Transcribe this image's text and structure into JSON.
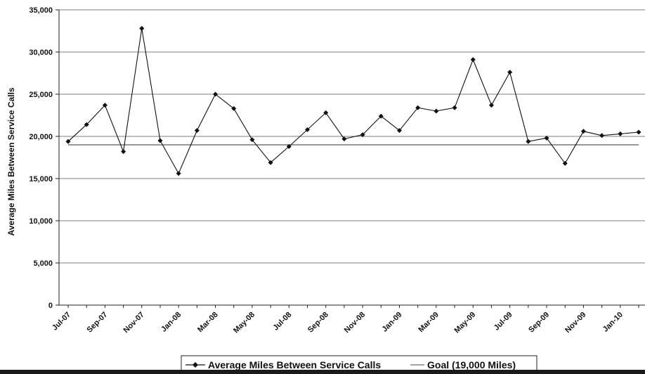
{
  "chart_data": {
    "type": "line",
    "title": "",
    "xlabel": "",
    "ylabel": "Average Miles Between Service Calls",
    "ylim": [
      0,
      35000
    ],
    "yticks": [
      "0",
      "5,000",
      "10,000",
      "15,000",
      "20,000",
      "25,000",
      "30,000",
      "35,000"
    ],
    "ytick_values": [
      0,
      5000,
      10000,
      15000,
      20000,
      25000,
      30000,
      35000
    ],
    "grid": true,
    "legend_position": "bottom",
    "x": [
      "Jul-07",
      "Aug-07",
      "Sep-07",
      "Oct-07",
      "Nov-07",
      "Dec-07",
      "Jan-08",
      "Feb-08",
      "Mar-08",
      "Apr-08",
      "May-08",
      "Jun-08",
      "Jul-08",
      "Aug-08",
      "Sep-08",
      "Oct-08",
      "Nov-08",
      "Dec-08",
      "Jan-09",
      "Feb-09",
      "Mar-09",
      "Apr-09",
      "May-09",
      "Jun-09",
      "Jul-09",
      "Aug-09",
      "Sep-09",
      "Oct-09",
      "Nov-09",
      "Dec-09",
      "Jan-10",
      "Feb-10"
    ],
    "xtick_labels": [
      "Jul-07",
      "Sep-07",
      "Nov-07",
      "Jan-08",
      "Mar-08",
      "May-08",
      "Jul-08",
      "Sep-08",
      "Nov-08",
      "Jan-09",
      "Mar-09",
      "May-09",
      "Jul-09",
      "Sep-09",
      "Nov-09",
      "Jan-10"
    ],
    "series": [
      {
        "name": "Average Miles Between Service Calls",
        "values": [
          19400,
          21400,
          23700,
          18200,
          32800,
          19500,
          15600,
          20700,
          25000,
          23300,
          19600,
          16900,
          18800,
          20800,
          22800,
          19700,
          20200,
          22400,
          20700,
          23400,
          23000,
          23400,
          29100,
          23700,
          27600,
          19400,
          19800,
          16800,
          20600,
          20100,
          20300,
          20500
        ],
        "color": "#111111",
        "marker": "diamond"
      },
      {
        "name": "Goal (19,000 Miles)",
        "values": [
          19000,
          19000,
          19000,
          19000,
          19000,
          19000,
          19000,
          19000,
          19000,
          19000,
          19000,
          19000,
          19000,
          19000,
          19000,
          19000,
          19000,
          19000,
          19000,
          19000,
          19000,
          19000,
          19000,
          19000,
          19000,
          19000,
          19000,
          19000,
          19000,
          19000,
          19000,
          19000
        ],
        "color": "#333333",
        "marker": "none"
      }
    ]
  }
}
